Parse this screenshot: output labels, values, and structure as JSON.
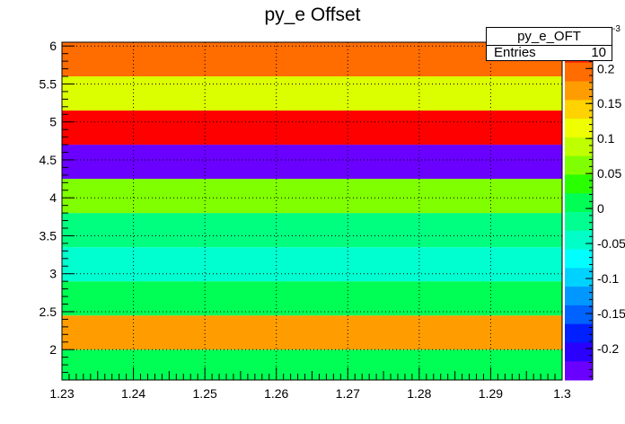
{
  "title": "py_e Offset",
  "stats": {
    "name": "py_e_OFT",
    "entries_label": "Entries",
    "entries_value": "10"
  },
  "z_exponent": "-3",
  "chart_data": {
    "type": "heatmap",
    "title": "py_e Offset",
    "xlim": [
      1.23,
      1.3
    ],
    "ylim": [
      1.6,
      6.05
    ],
    "x_ticks": [
      "1.23",
      "1.24",
      "1.25",
      "1.26",
      "1.27",
      "1.28",
      "1.29",
      "1.3"
    ],
    "y_ticks": [
      "2",
      "2.5",
      "3",
      "3.5",
      "4",
      "4.5",
      "5",
      "5.5",
      "6"
    ],
    "z_ticks": [
      "0.2",
      "0.15",
      "0.1",
      "0.05",
      "0",
      "-0.05",
      "-0.1",
      "-0.15",
      "-0.2"
    ],
    "z_exponent_label": "×10^-3",
    "grid": true,
    "bands": [
      {
        "y0": 1.6,
        "y1": 2.0,
        "color": "#00ff55",
        "z": -0.03
      },
      {
        "y0": 2.0,
        "y1": 2.45,
        "color": "#ff9d00",
        "z": 0.17
      },
      {
        "y0": 2.45,
        "y1": 2.9,
        "color": "#00ff55",
        "z": -0.03
      },
      {
        "y0": 2.9,
        "y1": 3.35,
        "color": "#00ffd0",
        "z": -0.07
      },
      {
        "y0": 3.35,
        "y1": 3.8,
        "color": "#00ff7f",
        "z": -0.01
      },
      {
        "y0": 3.8,
        "y1": 4.25,
        "color": "#80ff00",
        "z": 0.06
      },
      {
        "y0": 4.25,
        "y1": 4.7,
        "color": "#6a00ff",
        "z": -0.22
      },
      {
        "y0": 4.7,
        "y1": 5.15,
        "color": "#ff0000",
        "z": 0.22
      },
      {
        "y0": 5.15,
        "y1": 5.6,
        "color": "#dcff00",
        "z": 0.11
      },
      {
        "y0": 5.6,
        "y1": 6.05,
        "color": "#ff6c00",
        "z": 0.19
      }
    ],
    "palette": [
      "#ff2a00",
      "#ff6c00",
      "#ff9d00",
      "#ffd200",
      "#f0ff00",
      "#c0ff00",
      "#80ff00",
      "#2aff00",
      "#00ff55",
      "#00ff90",
      "#00ffc8",
      "#00ffff",
      "#00d2ff",
      "#0098ff",
      "#0062ff",
      "#0020ff",
      "#2a00ff",
      "#6a00ff"
    ]
  }
}
